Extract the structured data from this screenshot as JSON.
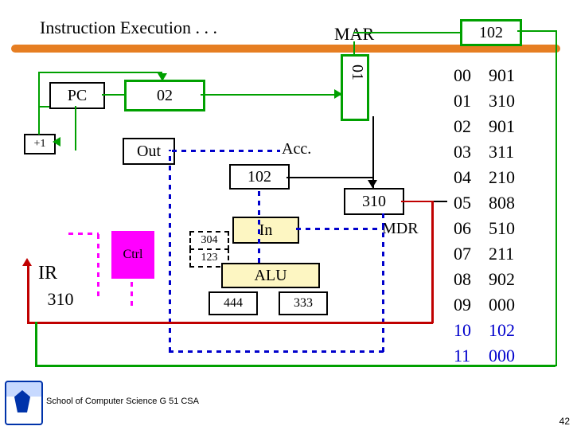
{
  "title": "Instruction Execution . . .",
  "labels": {
    "mar": "MAR",
    "mar_val_top": "102",
    "mar_box": "01",
    "pc": "PC",
    "pc_val": "02",
    "plus1": "+1",
    "out": "Out",
    "acc": "Acc.",
    "acc_val": "102",
    "mdr_val": "310",
    "mdr": "MDR",
    "in": "In",
    "in_a": "304",
    "in_b": "123",
    "ctrl": "Ctrl",
    "alu": "ALU",
    "alu_l": "444",
    "alu_r": "333",
    "ir": "IR",
    "ir_val": "310",
    "footer": "School of Computer Science G 51 CSA",
    "slidenum": "42"
  },
  "memory": {
    "addr": [
      "00",
      "01",
      "02",
      "03",
      "04",
      "05",
      "06",
      "07",
      "08",
      "09",
      "10",
      "11"
    ],
    "val": [
      "901",
      "310",
      "901",
      "311",
      "210",
      "808",
      "510",
      "211",
      "902",
      "000",
      "102",
      "000"
    ]
  },
  "colors": {
    "green": "#00a000",
    "red": "#c00000",
    "blue": "#0000cc",
    "magenta": "#ff00ff",
    "yellow": "#fdf6c2",
    "orange": "#e67e22"
  }
}
